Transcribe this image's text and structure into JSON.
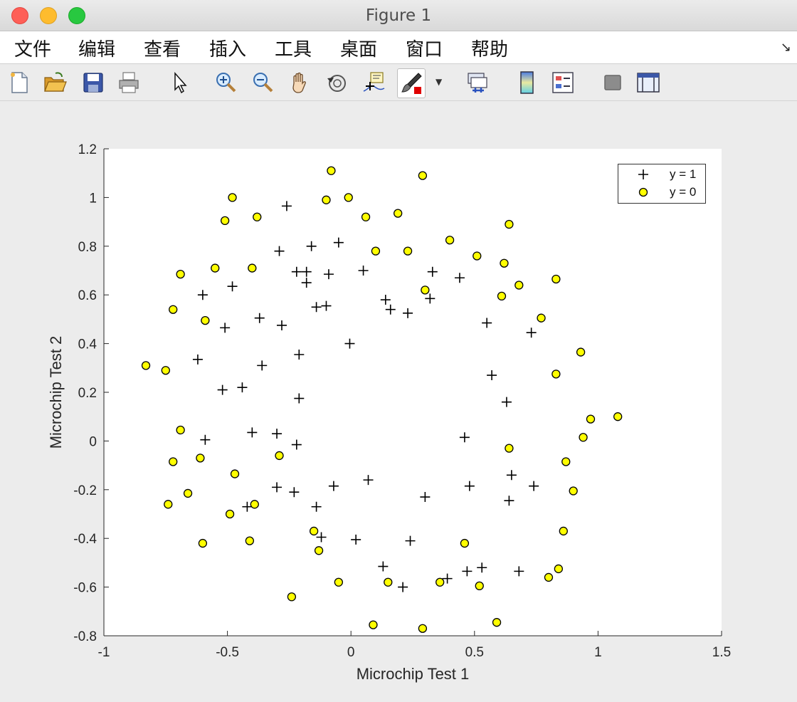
{
  "window": {
    "title": "Figure 1"
  },
  "menu": {
    "items": [
      "文件",
      "编辑",
      "查看",
      "插入",
      "工具",
      "桌面",
      "窗口",
      "帮助"
    ]
  },
  "toolbar": {
    "tools": [
      "new-figure-icon",
      "open-file-icon",
      "save-icon",
      "print-icon",
      "pointer-icon",
      "zoom-in-icon",
      "zoom-out-icon",
      "pan-hand-icon",
      "rotate-3d-icon",
      "data-cursor-icon",
      "brush-icon",
      "link-plot-icon",
      "colorbar-icon",
      "legend-icon",
      "hide-plot-tools-icon",
      "show-plot-tools-icon"
    ]
  },
  "colors": {
    "accepted_marker": "#000000",
    "rejected_marker_fill": "#ffff00",
    "rejected_marker_edge": "#000000",
    "axes_background": "#ffffff"
  },
  "chart_data": {
    "type": "scatter",
    "title": "",
    "xlabel": "Microchip Test 1",
    "ylabel": "Microchip Test 2",
    "xlim": [
      -1,
      1.5
    ],
    "ylim": [
      -0.8,
      1.2
    ],
    "xticks": [
      "-1",
      "-0.5",
      "0",
      "0.5",
      "1",
      "1.5"
    ],
    "yticks": [
      "-0.8",
      "-0.6",
      "-0.4",
      "-0.2",
      "0",
      "0.2",
      "0.4",
      "0.6",
      "0.8",
      "1",
      "1.2"
    ],
    "grid": false,
    "legend_position": "top-right",
    "series": [
      {
        "name": "y = 1",
        "marker": "plus",
        "points": [
          [
            -0.26,
            0.965
          ],
          [
            -0.29,
            0.78
          ],
          [
            -0.16,
            0.8
          ],
          [
            -0.05,
            0.815
          ],
          [
            -0.22,
            0.695
          ],
          [
            -0.18,
            0.695
          ],
          [
            -0.09,
            0.685
          ],
          [
            0.05,
            0.7
          ],
          [
            0.33,
            0.695
          ],
          [
            0.44,
            0.67
          ],
          [
            -0.18,
            0.65
          ],
          [
            -0.6,
            0.6
          ],
          [
            -0.48,
            0.635
          ],
          [
            -0.14,
            0.55
          ],
          [
            -0.1,
            0.555
          ],
          [
            0.14,
            0.58
          ],
          [
            0.16,
            0.54
          ],
          [
            0.23,
            0.525
          ],
          [
            0.32,
            0.585
          ],
          [
            -0.37,
            0.505
          ],
          [
            -0.28,
            0.475
          ],
          [
            -0.51,
            0.465
          ],
          [
            0.55,
            0.485
          ],
          [
            0.73,
            0.445
          ],
          [
            -0.005,
            0.4
          ],
          [
            -0.21,
            0.355
          ],
          [
            -0.62,
            0.335
          ],
          [
            -0.36,
            0.31
          ],
          [
            0.57,
            0.27
          ],
          [
            -0.52,
            0.21
          ],
          [
            -0.44,
            0.22
          ],
          [
            -0.21,
            0.175
          ],
          [
            0.63,
            0.16
          ],
          [
            -0.4,
            0.035
          ],
          [
            -0.3,
            0.03
          ],
          [
            -0.59,
            0.005
          ],
          [
            -0.22,
            -0.015
          ],
          [
            0.46,
            0.015
          ],
          [
            -0.3,
            -0.19
          ],
          [
            -0.23,
            -0.21
          ],
          [
            -0.07,
            -0.185
          ],
          [
            0.07,
            -0.16
          ],
          [
            0.3,
            -0.23
          ],
          [
            0.48,
            -0.185
          ],
          [
            0.65,
            -0.14
          ],
          [
            0.74,
            -0.185
          ],
          [
            0.64,
            -0.245
          ],
          [
            -0.42,
            -0.27
          ],
          [
            -0.14,
            -0.27
          ],
          [
            -0.12,
            -0.395
          ],
          [
            0.02,
            -0.405
          ],
          [
            0.24,
            -0.41
          ],
          [
            0.13,
            -0.515
          ],
          [
            0.21,
            -0.6
          ],
          [
            0.39,
            -0.565
          ],
          [
            0.47,
            -0.535
          ],
          [
            0.53,
            -0.52
          ],
          [
            0.68,
            -0.535
          ]
        ]
      },
      {
        "name": "y = 0",
        "marker": "circle",
        "points": [
          [
            -0.08,
            1.11
          ],
          [
            0.29,
            1.09
          ],
          [
            -0.48,
            1.0
          ],
          [
            -0.01,
            1.0
          ],
          [
            -0.1,
            0.99
          ],
          [
            -0.51,
            0.905
          ],
          [
            -0.38,
            0.92
          ],
          [
            0.06,
            0.92
          ],
          [
            0.19,
            0.935
          ],
          [
            0.64,
            0.89
          ],
          [
            0.4,
            0.825
          ],
          [
            0.1,
            0.78
          ],
          [
            0.23,
            0.78
          ],
          [
            0.51,
            0.76
          ],
          [
            0.62,
            0.73
          ],
          [
            -0.69,
            0.685
          ],
          [
            -0.55,
            0.71
          ],
          [
            -0.4,
            0.71
          ],
          [
            0.68,
            0.64
          ],
          [
            0.83,
            0.665
          ],
          [
            0.3,
            0.62
          ],
          [
            0.61,
            0.595
          ],
          [
            -0.72,
            0.54
          ],
          [
            -0.59,
            0.495
          ],
          [
            0.77,
            0.505
          ],
          [
            0.93,
            0.365
          ],
          [
            -0.83,
            0.31
          ],
          [
            -0.75,
            0.29
          ],
          [
            0.83,
            0.275
          ],
          [
            0.97,
            0.09
          ],
          [
            1.08,
            0.1
          ],
          [
            -0.69,
            0.045
          ],
          [
            0.94,
            0.015
          ],
          [
            0.64,
            -0.03
          ],
          [
            -0.61,
            -0.07
          ],
          [
            -0.29,
            -0.06
          ],
          [
            -0.72,
            -0.085
          ],
          [
            0.87,
            -0.085
          ],
          [
            -0.47,
            -0.135
          ],
          [
            -0.66,
            -0.215
          ],
          [
            0.9,
            -0.205
          ],
          [
            -0.74,
            -0.26
          ],
          [
            -0.39,
            -0.26
          ],
          [
            -0.49,
            -0.3
          ],
          [
            -0.15,
            -0.37
          ],
          [
            0.86,
            -0.37
          ],
          [
            -0.6,
            -0.42
          ],
          [
            -0.41,
            -0.41
          ],
          [
            0.46,
            -0.42
          ],
          [
            -0.13,
            -0.45
          ],
          [
            -0.05,
            -0.58
          ],
          [
            0.15,
            -0.58
          ],
          [
            0.36,
            -0.58
          ],
          [
            0.52,
            -0.595
          ],
          [
            0.84,
            -0.525
          ],
          [
            0.8,
            -0.56
          ],
          [
            -0.24,
            -0.64
          ],
          [
            0.09,
            -0.755
          ],
          [
            0.59,
            -0.745
          ],
          [
            0.29,
            -0.77
          ]
        ]
      }
    ]
  }
}
